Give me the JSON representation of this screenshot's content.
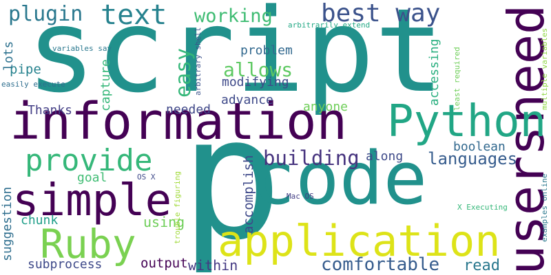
{
  "words": [
    {
      "text": "script",
      "color": "#21918c"
    },
    {
      "text": "p",
      "color": "#21918c"
    },
    {
      "text": "code",
      "color": "#21918c"
    },
    {
      "text": "information",
      "color": "#440154"
    },
    {
      "text": "users",
      "color": "#440154"
    },
    {
      "text": "need",
      "color": "#440154"
    },
    {
      "text": "Python",
      "color": "#21a685"
    },
    {
      "text": "application",
      "color": "#dde318"
    },
    {
      "text": "simple",
      "color": "#440154"
    },
    {
      "text": "Ruby",
      "color": "#7ad151"
    },
    {
      "text": "provide",
      "color": "#35b779"
    },
    {
      "text": "text",
      "color": "#26828e"
    },
    {
      "text": "best way",
      "color": "#3b528b"
    },
    {
      "text": "plugin",
      "color": "#2a788e"
    },
    {
      "text": "working",
      "color": "#3fbc73"
    },
    {
      "text": "easy",
      "color": "#35b779"
    },
    {
      "text": "allows",
      "color": "#5ec962"
    },
    {
      "text": "building",
      "color": "#46337e"
    },
    {
      "text": "languages",
      "color": "#365c8d"
    },
    {
      "text": "comfortable",
      "color": "#365c8d"
    },
    {
      "text": "accomplish",
      "color": "#3e4989"
    },
    {
      "text": "boolean",
      "color": "#31688e"
    },
    {
      "text": "problem",
      "color": "#31688e"
    },
    {
      "text": "modifying",
      "color": "#3e4989"
    },
    {
      "text": "advance",
      "color": "#3e4989"
    },
    {
      "text": "anyone",
      "color": "#6ece58"
    },
    {
      "text": "Thanks",
      "color": "#433e85"
    },
    {
      "text": "needed",
      "color": "#3f4788"
    },
    {
      "text": "along",
      "color": "#3e4a89"
    },
    {
      "text": "using",
      "color": "#6ece58"
    },
    {
      "text": "output",
      "color": "#440154"
    },
    {
      "text": "within",
      "color": "#443983"
    },
    {
      "text": "read",
      "color": "#2a788e"
    },
    {
      "text": "subprocess",
      "color": "#3e4989"
    },
    {
      "text": "chunk",
      "color": "#1f9e89"
    },
    {
      "text": "goal",
      "color": "#3fbc73"
    },
    {
      "text": "suggestion",
      "color": "#2e6e8e"
    },
    {
      "text": "pipe",
      "color": "#26828e"
    },
    {
      "text": "lots",
      "color": "#2c718e"
    },
    {
      "text": "capture",
      "color": "#35b779"
    },
    {
      "text": "accessing",
      "color": "#29af7f"
    },
    {
      "text": "variables say",
      "color": "#2a788e"
    },
    {
      "text": "easily execute",
      "color": "#2e6e8e"
    },
    {
      "text": "arbitrary shell",
      "color": "#3b528b"
    },
    {
      "text": "arbitrarily extend",
      "color": "#22a884"
    },
    {
      "text": "least required",
      "color": "#6ece58"
    },
    {
      "text": "multiple variables",
      "color": "#8fd744"
    },
    {
      "text": "examples online",
      "color": "#2a788e"
    },
    {
      "text": "X Executing",
      "color": "#35b779"
    },
    {
      "text": "Mac OS",
      "color": "#433e85"
    },
    {
      "text": "OS X",
      "color": "#3e4989"
    },
    {
      "text": "trouble figuring",
      "color": "#a0da39"
    }
  ]
}
